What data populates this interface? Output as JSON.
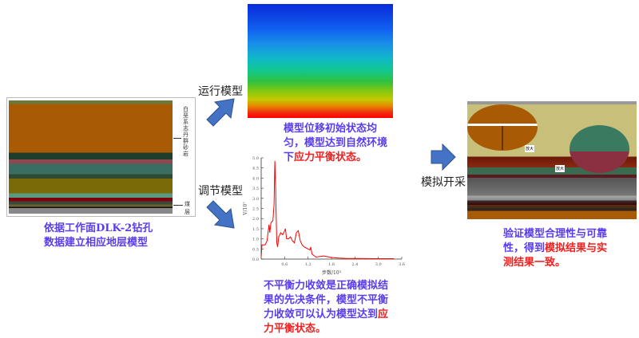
{
  "left_panel": {
    "layer_label_top": "白垩系志丹群砂岩",
    "layer_label_coal": "煤层",
    "caption_line1": "依据工作面DLK-2钻孔",
    "caption_line2": "数据建立相应地层模型"
  },
  "steps": {
    "run_label": "运行模型",
    "adjust_label": "调节模型",
    "mine_label": "模拟开采"
  },
  "top_panel": {
    "caption_blue": "模型位移初始状态均匀，模型达到自然环境下",
    "caption_red": "应力平衡状态。"
  },
  "bottom_panel": {
    "caption_blue": "不平衡力收敛是正确模拟结果的先决条件，模型不平衡力收敛可以认为模型达到",
    "caption_red": "应力平衡状态。"
  },
  "right_panel": {
    "zoom_label_1": "放大",
    "zoom_label_2": "放大",
    "caption_blue": "验证模型合理性与可靠性，得到",
    "caption_red": "模拟结果与实测结果一致。"
  },
  "colors": {
    "arrow": "#4472c4",
    "caption": "#5a3cf0",
    "highlight": "#f02020",
    "curve": "#ff0000"
  },
  "chart_data": {
    "type": "line",
    "xlabel": "步数/10³",
    "ylabel": "V/10⁷",
    "xlim": [
      0,
      3.6
    ],
    "ylim": [
      0,
      5.0
    ],
    "xticks": [
      "0.6",
      "1.2",
      "1.8",
      "2.4",
      "3.0",
      "3.6"
    ],
    "yticks": [
      "0.0",
      "0.5",
      "1.0",
      "1.5",
      "2.0",
      "2.5",
      "3.0",
      "3.5",
      "4.0",
      "4.5",
      "5.0"
    ],
    "series": [
      {
        "x": [
          0,
          0.02,
          0.1,
          0.15,
          0.2,
          0.22,
          0.25,
          0.3,
          0.33,
          0.35,
          0.37,
          0.38,
          0.4,
          0.42,
          0.45,
          0.5,
          0.55,
          0.6,
          0.62,
          0.65,
          0.7,
          0.75,
          0.8,
          0.85,
          0.9,
          0.95,
          1.0,
          1.05,
          1.1,
          1.2,
          1.25,
          1.27,
          1.3,
          1.4,
          1.6,
          1.8,
          2.0,
          2.2,
          2.5,
          3.0,
          3.4
        ],
        "y": [
          0.1,
          0.7,
          0.7,
          0.9,
          1.7,
          1.3,
          1.8,
          1.9,
          2.7,
          4.85,
          3.5,
          2.4,
          0.8,
          0.6,
          1.1,
          1.3,
          1.2,
          1.4,
          1.5,
          1.0,
          1.0,
          1.1,
          0.9,
          0.8,
          1.3,
          1.4,
          0.9,
          0.7,
          0.6,
          0.5,
          0.45,
          0.6,
          0.25,
          0.1,
          0.15,
          0.08,
          0.05,
          0.03,
          0.03,
          0.02,
          0.02
        ]
      }
    ]
  }
}
